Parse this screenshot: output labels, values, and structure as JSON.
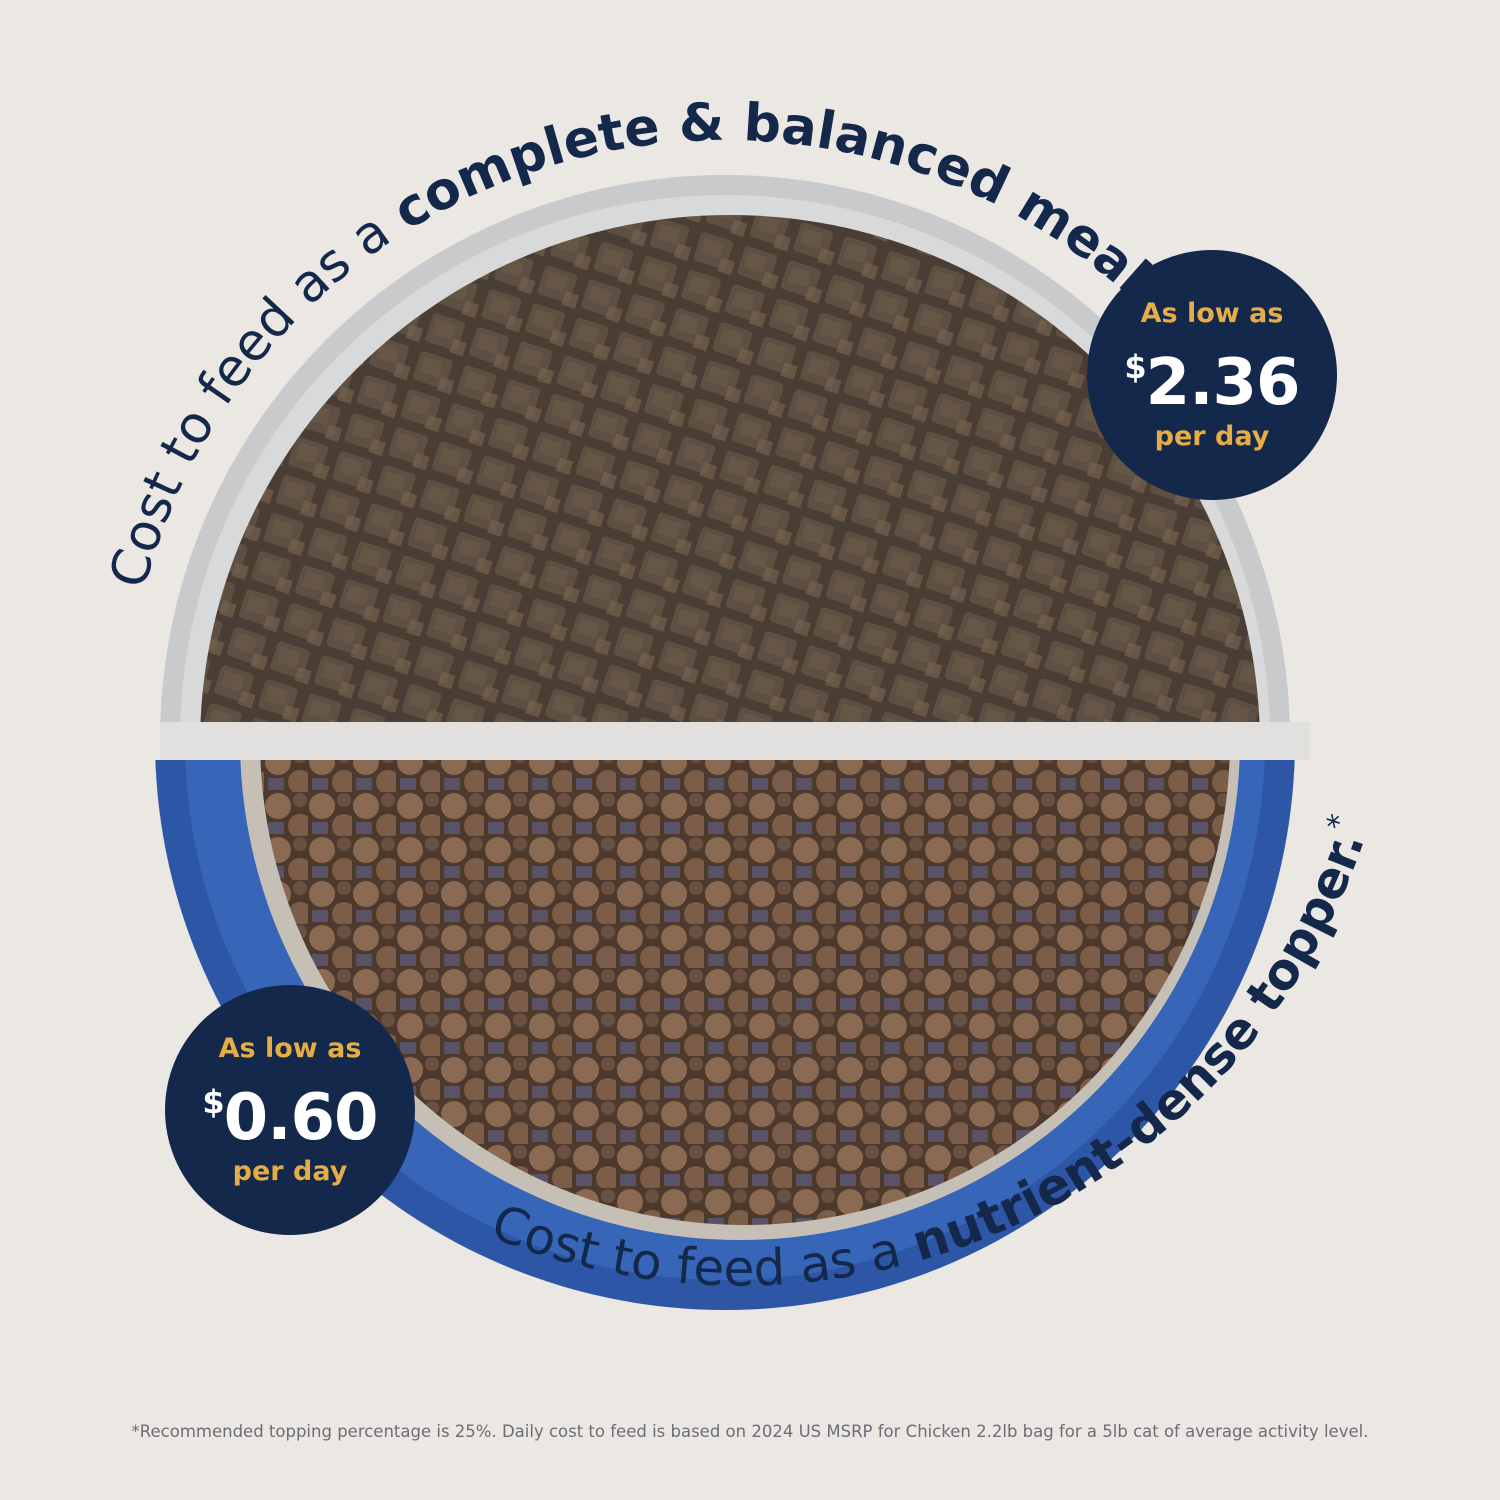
{
  "headline_top": {
    "regular": "Cost to feed as a ",
    "bold": "complete & balanced meal."
  },
  "headline_bottom": {
    "regular": "Cost to feed as a ",
    "bold": "nutrient-dense topper.",
    "asterisk": "*"
  },
  "badge_meal": {
    "label_top": "As low as",
    "currency": "$",
    "price": "2.36",
    "label_bottom": "per day"
  },
  "badge_topper": {
    "label_top": "As low as",
    "currency": "$",
    "price": "0.60",
    "label_bottom": "per day"
  },
  "footnote": "*Recommended topping percentage is 25%. Daily cost to feed is based on 2024 US MSRP for Chicken 2.2lb bag for a 5lb cat of average activity level.",
  "colors": {
    "background": "#ebe7e3",
    "navy": "#14284b",
    "gold": "#e5ad45",
    "bowl_blue": "#2d57a6",
    "bowl_gray": "#c9cacb"
  }
}
